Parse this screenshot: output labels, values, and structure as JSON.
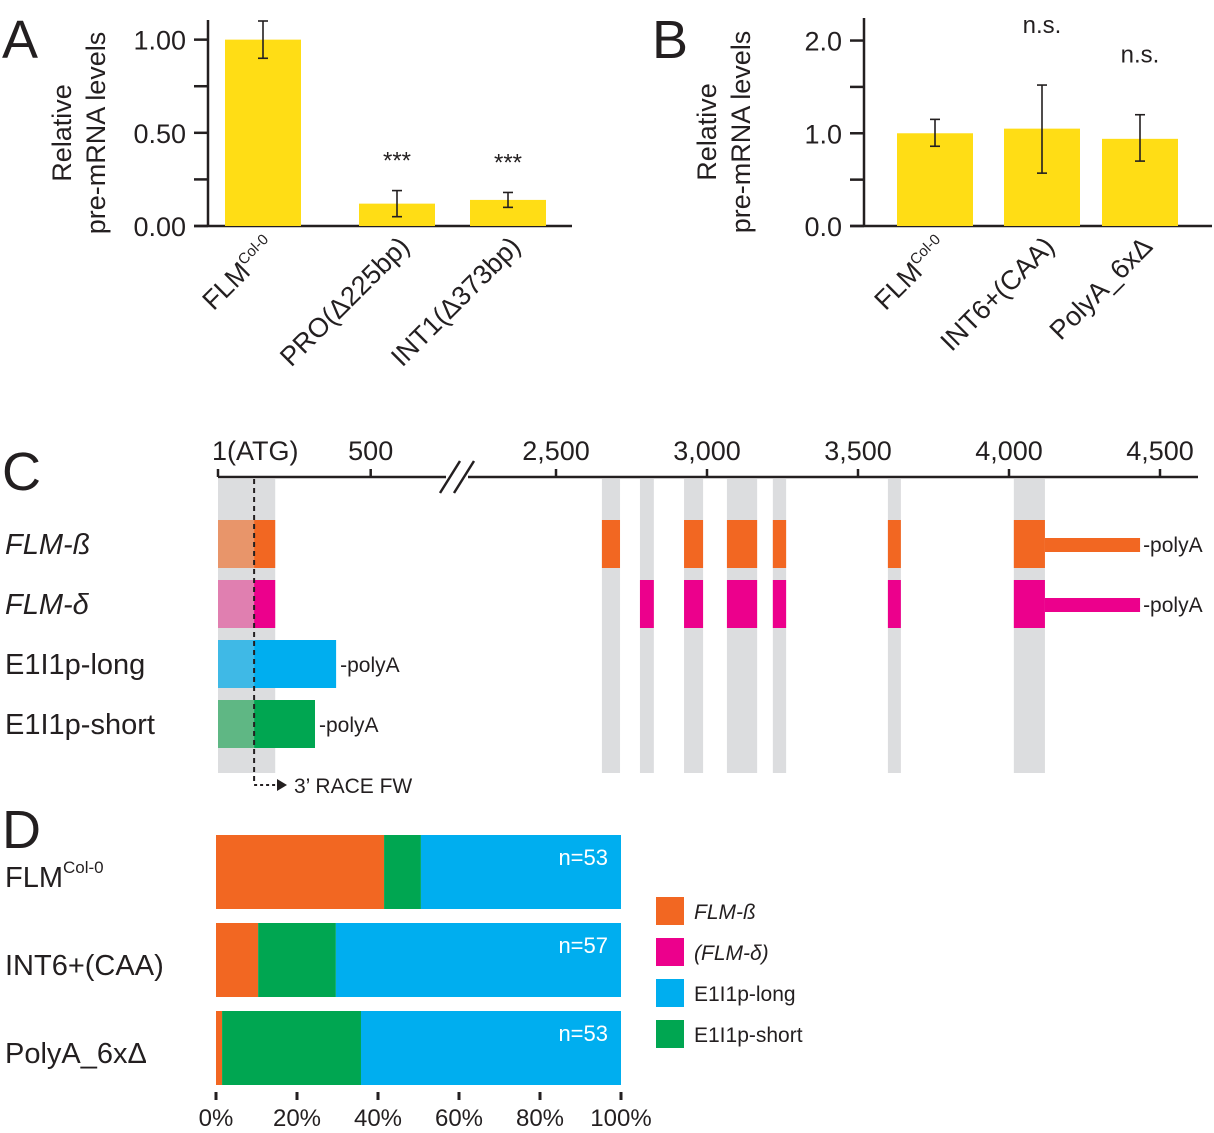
{
  "colors": {
    "bar_yellow": "#ffdd15",
    "flm_beta": "#f26722",
    "flm_beta_light": "#e8956a",
    "flm_delta": "#ec008c",
    "flm_delta_light": "#e07fb0",
    "e1i1p_long": "#00aeef",
    "e1i1p_long_light": "#3fb9e6",
    "e1i1p_short": "#00a651",
    "e1i1p_short_light": "#5fb784",
    "intron_grey": "#dcdddf",
    "text": "#231f20"
  },
  "chart_data": [
    {
      "panel": "A",
      "type": "bar",
      "ylabel": [
        "Relative",
        "pre-mRNA levels"
      ],
      "ylim": [
        0,
        1.1
      ],
      "yticks": [
        0,
        0.25,
        0.5,
        0.75,
        1.0
      ],
      "ytick_labels": [
        "0.00",
        "",
        "0.50",
        "",
        "1.00"
      ],
      "categories": [
        {
          "main": "FLM",
          "sup": "Col-0"
        },
        {
          "main": "PRO(Δ225bp)",
          "sup": ""
        },
        {
          "main": "INT1(Δ373bp)",
          "sup": ""
        }
      ],
      "values": [
        1.0,
        0.12,
        0.14
      ],
      "error_low": [
        0.9,
        0.05,
        0.1
      ],
      "error_high": [
        1.1,
        0.19,
        0.18
      ],
      "annotations": [
        "",
        "***",
        "***"
      ]
    },
    {
      "panel": "B",
      "type": "bar",
      "ylabel": [
        "Relative",
        "pre-mRNA levels"
      ],
      "ylim": [
        0,
        2.2
      ],
      "yticks": [
        0,
        0.5,
        1.0,
        1.5,
        2.0
      ],
      "ytick_labels": [
        "0.0",
        "",
        "1.0",
        "",
        "2.0"
      ],
      "categories": [
        {
          "main": "FLM",
          "sup": "Col-0"
        },
        {
          "main": "INT6+(CAA)",
          "sup": ""
        },
        {
          "main": "PolyA_6xΔ",
          "sup": ""
        }
      ],
      "values": [
        1.0,
        1.05,
        0.94
      ],
      "error_low": [
        0.86,
        0.57,
        0.7
      ],
      "error_high": [
        1.15,
        1.52,
        1.2
      ],
      "annotations": [
        "",
        "n.s.",
        "n.s."
      ]
    },
    {
      "panel": "C",
      "type": "diagram",
      "axis_ticks": [
        {
          "bp": 1,
          "label": "1(ATG)"
        },
        {
          "bp": 500,
          "label": "500"
        },
        {
          "bp": 2500,
          "label": "2,500"
        },
        {
          "bp": 3000,
          "label": "3,000"
        },
        {
          "bp": 3500,
          "label": "3,500"
        },
        {
          "bp": 4000,
          "label": "4,000"
        },
        {
          "bp": 4500,
          "label": "4,500"
        }
      ],
      "axis_break": true,
      "exons": [
        [
          1,
          188
        ],
        [
          2652,
          2712
        ],
        [
          2778,
          2824
        ],
        [
          2924,
          2987
        ],
        [
          3066,
          3166
        ],
        [
          3218,
          3262
        ],
        [
          3599,
          3642
        ],
        [
          4016,
          4119
        ]
      ],
      "atg_bp": 119,
      "primer_label": "3’ RACE FW",
      "tracks": [
        {
          "label": "FLM-ß",
          "italic": true,
          "color_key": "flm_beta",
          "exons": [
            0,
            1,
            3,
            4,
            5,
            6,
            7
          ],
          "tail_end_bp": 4434,
          "end_label": "-polyA"
        },
        {
          "label": "FLM-δ",
          "italic": true,
          "color_key": "flm_delta",
          "exons": [
            0,
            2,
            3,
            4,
            5,
            6,
            7
          ],
          "tail_end_bp": 4434,
          "end_label": "-polyA"
        },
        {
          "label": "E1I1p-long",
          "italic": false,
          "color_key": "e1i1p_long",
          "span": [
            1,
            387
          ],
          "end_label": "-polyA"
        },
        {
          "label": "E1I1p-short",
          "italic": false,
          "color_key": "e1i1p_short",
          "span": [
            1,
            318
          ],
          "end_label": "-polyA"
        }
      ]
    },
    {
      "panel": "D",
      "type": "bar",
      "orientation": "horizontal-stacked",
      "xlim": [
        0,
        100
      ],
      "xticks": [
        0,
        20,
        40,
        60,
        80,
        100
      ],
      "xtick_labels": [
        "0%",
        "20%",
        "40%",
        "60%",
        "80%",
        "100%"
      ],
      "categories": [
        {
          "main": "FLM",
          "sup": "Col-0"
        },
        {
          "main": "INT6+(CAA)",
          "sup": ""
        },
        {
          "main": "PolyA_6xΔ",
          "sup": ""
        }
      ],
      "series": [
        {
          "name": "FLM-ß",
          "italic": true,
          "color_key": "flm_beta",
          "values": [
            41.5,
            10.4,
            1.5
          ]
        },
        {
          "name": "(FLM-δ)",
          "italic": true,
          "color_key": "flm_delta",
          "values": [
            0,
            0,
            0
          ]
        },
        {
          "name": "E1I1p-short",
          "italic": false,
          "color_key": "e1i1p_short",
          "values": [
            9.1,
            19.2,
            34.3
          ]
        },
        {
          "name": "E1I1p-long",
          "italic": false,
          "color_key": "e1i1p_long",
          "values": [
            49.4,
            70.4,
            64.2
          ]
        }
      ],
      "n_labels": [
        "n=53",
        "n=57",
        "n=53"
      ],
      "legend": [
        {
          "label": "FLM-ß",
          "italic": true,
          "color_key": "flm_beta"
        },
        {
          "label": "(FLM-δ)",
          "italic": true,
          "color_key": "flm_delta"
        },
        {
          "label": "E1I1p-long",
          "italic": false,
          "color_key": "e1i1p_long"
        },
        {
          "label": "E1I1p-short",
          "italic": false,
          "color_key": "e1i1p_short"
        }
      ],
      "legend_position": "right"
    }
  ],
  "panels": {
    "a": "A",
    "b": "B",
    "c": "C",
    "d": "D"
  }
}
